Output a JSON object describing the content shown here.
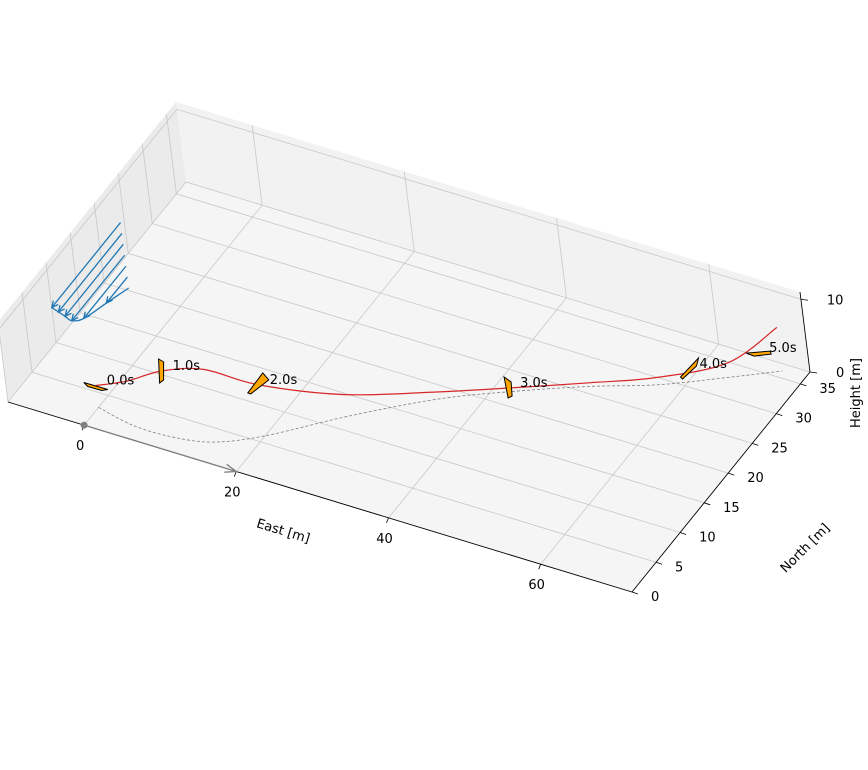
{
  "chart_data": {
    "type": "line",
    "projection": "3d",
    "axes": {
      "x": {
        "label": "East [m]",
        "ticks": [
          0,
          20,
          40,
          60
        ],
        "range": [
          -10,
          72
        ]
      },
      "y": {
        "label": "North [m]",
        "ticks": [
          0,
          5,
          10,
          15,
          20,
          25,
          30,
          35
        ],
        "range": [
          0,
          37
        ]
      },
      "z": {
        "label": "Height [m]",
        "ticks": [
          0,
          10
        ],
        "range": [
          0,
          11
        ]
      }
    },
    "grid": true,
    "colors": {
      "trajectory": "#d62728",
      "ground_track": "#808080",
      "wind_profile": "#1f77b4",
      "marker_fill": "#ffa500",
      "marker_edge": "#000000",
      "reference_arrow": "#808080",
      "pane": "#f2f2f2",
      "grid": "#c8c8c8"
    },
    "series": [
      {
        "role": "trajectory",
        "x": [
          0,
          5,
          10,
          15,
          20,
          27,
          35,
          42,
          50,
          57,
          64,
          69
        ],
        "y": [
          3,
          2,
          2,
          3,
          6,
          12,
          18,
          22,
          26,
          29,
          33,
          36
        ],
        "z": [
          3,
          6,
          9,
          10,
          7,
          3,
          1,
          0.5,
          0.5,
          1,
          2,
          6
        ]
      },
      {
        "role": "ground_track",
        "x": [
          0,
          5,
          10,
          15,
          20,
          27,
          35,
          42,
          50,
          57,
          64,
          69
        ],
        "y": [
          3,
          2,
          2,
          3,
          6,
          12,
          18,
          22,
          26,
          29,
          33,
          36
        ],
        "z": [
          0,
          0,
          0,
          0,
          0,
          0,
          0,
          0,
          0,
          0,
          0,
          0
        ]
      }
    ],
    "time_markers": [
      {
        "label": "0.0s",
        "x": 0,
        "y": 3,
        "z": 3
      },
      {
        "label": "1.0s",
        "x": 10,
        "y": 2,
        "z": 9
      },
      {
        "label": "2.0s",
        "x": 20,
        "y": 6,
        "z": 7
      },
      {
        "label": "3.0s",
        "x": 42,
        "y": 22,
        "z": 0.5
      },
      {
        "label": "4.0s",
        "x": 60,
        "y": 31,
        "z": 1.5
      },
      {
        "label": "5.0s",
        "x": 66,
        "y": 36,
        "z": 1.5
      }
    ],
    "wind_profile": {
      "x": -7,
      "heights": [
        1.5,
        3,
        4.5,
        6,
        7.5,
        9
      ],
      "speeds": [
        2,
        4,
        5,
        5.5,
        6,
        6.5
      ]
    },
    "reference_arrow": {
      "from": [
        0,
        0,
        0
      ],
      "to": [
        20,
        0,
        0
      ]
    }
  }
}
